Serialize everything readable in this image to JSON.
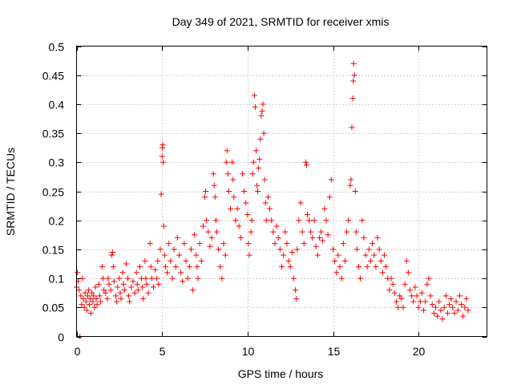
{
  "chart_data": {
    "type": "scatter",
    "title": "Day 349 of 2021, SRMTID for receiver xmis",
    "xlabel": "GPS time / hours",
    "ylabel": "SRMTID / TECUs",
    "xlim": [
      0,
      24
    ],
    "ylim": [
      0,
      0.5
    ],
    "x_ticks": [
      0,
      5,
      10,
      15,
      20
    ],
    "x_tick_labels": [
      "0",
      "5",
      "10",
      "15",
      "20"
    ],
    "y_ticks": [
      0,
      0.05,
      0.1,
      0.15,
      0.2,
      0.25,
      0.3,
      0.35,
      0.4,
      0.45,
      0.5
    ],
    "y_tick_labels": [
      "0",
      "0.05",
      "0.1",
      "0.15",
      "0.2",
      "0.25",
      "0.3",
      "0.35",
      "0.4",
      "0.45",
      "0.5"
    ],
    "grid": true,
    "marker": "+",
    "marker_color": "#ff0000",
    "series": [
      {
        "name": "SRMTID",
        "points": [
          [
            0.0,
            0.085
          ],
          [
            0.05,
            0.11
          ],
          [
            0.1,
            0.095
          ],
          [
            0.15,
            0.08
          ],
          [
            0.2,
            0.0
          ],
          [
            0.25,
            0.07
          ],
          [
            0.3,
            0.055
          ],
          [
            0.35,
            0.1
          ],
          [
            0.4,
            0.065
          ],
          [
            0.45,
            0.05
          ],
          [
            0.5,
            0.075
          ],
          [
            0.55,
            0.06
          ],
          [
            0.6,
            0.045
          ],
          [
            0.65,
            0.07
          ],
          [
            0.7,
            0.08
          ],
          [
            0.75,
            0.055
          ],
          [
            0.8,
            0.065
          ],
          [
            0.85,
            0.04
          ],
          [
            0.9,
            0.075
          ],
          [
            0.95,
            0.06
          ],
          [
            1.0,
            0.07
          ],
          [
            1.05,
            0.05
          ],
          [
            1.1,
            0.085
          ],
          [
            1.15,
            0.065
          ],
          [
            1.2,
            0.055
          ],
          [
            1.3,
            0.09
          ],
          [
            1.35,
            0.07
          ],
          [
            1.4,
            0.06
          ],
          [
            1.5,
            0.12
          ],
          [
            1.55,
            0.1
          ],
          [
            1.6,
            0.08
          ],
          [
            1.7,
            0.075
          ],
          [
            1.8,
            0.065
          ],
          [
            1.85,
            0.1
          ],
          [
            1.9,
            0.09
          ],
          [
            2.0,
            0.08
          ],
          [
            2.05,
            0.14
          ],
          [
            2.1,
            0.145
          ],
          [
            2.15,
            0.12
          ],
          [
            2.2,
            0.095
          ],
          [
            2.3,
            0.07
          ],
          [
            2.35,
            0.06
          ],
          [
            2.4,
            0.085
          ],
          [
            2.5,
            0.1
          ],
          [
            2.55,
            0.075
          ],
          [
            2.6,
            0.065
          ],
          [
            2.7,
            0.11
          ],
          [
            2.75,
            0.09
          ],
          [
            2.8,
            0.08
          ],
          [
            2.9,
            0.125
          ],
          [
            3.0,
            0.1
          ],
          [
            3.05,
            0.07
          ],
          [
            3.1,
            0.06
          ],
          [
            3.2,
            0.085
          ],
          [
            3.3,
            0.095
          ],
          [
            3.4,
            0.075
          ],
          [
            3.5,
            0.11
          ],
          [
            3.55,
            0.09
          ],
          [
            3.6,
            0.08
          ],
          [
            3.7,
            0.12
          ],
          [
            3.8,
            0.1
          ],
          [
            3.85,
            0.085
          ],
          [
            3.9,
            0.065
          ],
          [
            4.0,
            0.13
          ],
          [
            4.05,
            0.1
          ],
          [
            4.1,
            0.09
          ],
          [
            4.2,
            0.075
          ],
          [
            4.3,
            0.16
          ],
          [
            4.35,
            0.12
          ],
          [
            4.4,
            0.1
          ],
          [
            4.5,
            0.085
          ],
          [
            4.6,
            0.115
          ],
          [
            4.7,
            0.1
          ],
          [
            4.75,
            0.13
          ],
          [
            4.8,
            0.09
          ],
          [
            4.9,
            0.15
          ],
          [
            4.95,
            0.245
          ],
          [
            5.0,
            0.31
          ],
          [
            5.02,
            0.325
          ],
          [
            5.04,
            0.33
          ],
          [
            5.06,
            0.3
          ],
          [
            5.1,
            0.19
          ],
          [
            5.15,
            0.14
          ],
          [
            5.2,
            0.12
          ],
          [
            5.3,
            0.11
          ],
          [
            5.4,
            0.16
          ],
          [
            5.5,
            0.13
          ],
          [
            5.6,
            0.1
          ],
          [
            5.7,
            0.15
          ],
          [
            5.8,
            0.12
          ],
          [
            5.9,
            0.17
          ],
          [
            6.0,
            0.14
          ],
          [
            6.1,
            0.11
          ],
          [
            6.2,
            0.095
          ],
          [
            6.3,
            0.16
          ],
          [
            6.4,
            0.13
          ],
          [
            6.5,
            0.1
          ],
          [
            6.6,
            0.12
          ],
          [
            6.7,
            0.15
          ],
          [
            6.8,
            0.08
          ],
          [
            6.9,
            0.175
          ],
          [
            7.0,
            0.14
          ],
          [
            7.05,
            0.12
          ],
          [
            7.1,
            0.1
          ],
          [
            7.2,
            0.16
          ],
          [
            7.3,
            0.13
          ],
          [
            7.4,
            0.19
          ],
          [
            7.5,
            0.24
          ],
          [
            7.55,
            0.25
          ],
          [
            7.6,
            0.2
          ],
          [
            7.7,
            0.18
          ],
          [
            7.8,
            0.155
          ],
          [
            7.9,
            0.17
          ],
          [
            8.0,
            0.28
          ],
          [
            8.05,
            0.26
          ],
          [
            8.1,
            0.24
          ],
          [
            8.15,
            0.2
          ],
          [
            8.2,
            0.18
          ],
          [
            8.3,
            0.15
          ],
          [
            8.4,
            0.12
          ],
          [
            8.5,
            0.1
          ],
          [
            8.6,
            0.16
          ],
          [
            8.7,
            0.14
          ],
          [
            8.75,
            0.3
          ],
          [
            8.8,
            0.32
          ],
          [
            8.85,
            0.28
          ],
          [
            8.9,
            0.25
          ],
          [
            9.0,
            0.22
          ],
          [
            9.1,
            0.3
          ],
          [
            9.15,
            0.27
          ],
          [
            9.2,
            0.24
          ],
          [
            9.3,
            0.2
          ],
          [
            9.4,
            0.22
          ],
          [
            9.5,
            0.19
          ],
          [
            9.6,
            0.17
          ],
          [
            9.7,
            0.28
          ],
          [
            9.8,
            0.25
          ],
          [
            9.9,
            0.23
          ],
          [
            10.0,
            0.21
          ],
          [
            10.05,
            0.16
          ],
          [
            10.1,
            0.14
          ],
          [
            10.2,
            0.18
          ],
          [
            10.25,
            0.2
          ],
          [
            10.3,
            0.28
          ],
          [
            10.35,
            0.3
          ],
          [
            10.4,
            0.415
          ],
          [
            10.45,
            0.395
          ],
          [
            10.5,
            0.32
          ],
          [
            10.55,
            0.26
          ],
          [
            10.6,
            0.25
          ],
          [
            10.65,
            0.29
          ],
          [
            10.7,
            0.305
          ],
          [
            10.75,
            0.34
          ],
          [
            10.8,
            0.38
          ],
          [
            10.85,
            0.388
          ],
          [
            10.9,
            0.4
          ],
          [
            10.95,
            0.35
          ],
          [
            11.0,
            0.27
          ],
          [
            11.05,
            0.23
          ],
          [
            11.1,
            0.2
          ],
          [
            11.2,
            0.24
          ],
          [
            11.3,
            0.22
          ],
          [
            11.4,
            0.2
          ],
          [
            11.5,
            0.18
          ],
          [
            11.6,
            0.16
          ],
          [
            11.7,
            0.19
          ],
          [
            11.8,
            0.17
          ],
          [
            11.9,
            0.15
          ],
          [
            12.0,
            0.12
          ],
          [
            12.1,
            0.14
          ],
          [
            12.2,
            0.18
          ],
          [
            12.3,
            0.16
          ],
          [
            12.4,
            0.13
          ],
          [
            12.5,
            0.12
          ],
          [
            12.6,
            0.145
          ],
          [
            12.7,
            0.1
          ],
          [
            12.8,
            0.08
          ],
          [
            12.85,
            0.065
          ],
          [
            12.9,
            0.15
          ],
          [
            13.0,
            0.2
          ],
          [
            13.1,
            0.23
          ],
          [
            13.2,
            0.18
          ],
          [
            13.3,
            0.16
          ],
          [
            13.4,
            0.3
          ],
          [
            13.45,
            0.295
          ],
          [
            13.5,
            0.21
          ],
          [
            13.6,
            0.2
          ],
          [
            13.7,
            0.18
          ],
          [
            13.8,
            0.17
          ],
          [
            13.9,
            0.2
          ],
          [
            14.0,
            0.155
          ],
          [
            14.1,
            0.14
          ],
          [
            14.2,
            0.17
          ],
          [
            14.3,
            0.18
          ],
          [
            14.4,
            0.165
          ],
          [
            14.5,
            0.22
          ],
          [
            14.6,
            0.2
          ],
          [
            14.7,
            0.175
          ],
          [
            14.8,
            0.24
          ],
          [
            14.9,
            0.27
          ],
          [
            15.0,
            0.15
          ],
          [
            15.1,
            0.13
          ],
          [
            15.2,
            0.11
          ],
          [
            15.3,
            0.14
          ],
          [
            15.4,
            0.12
          ],
          [
            15.5,
            0.1
          ],
          [
            15.6,
            0.16
          ],
          [
            15.7,
            0.13
          ],
          [
            15.8,
            0.18
          ],
          [
            15.9,
            0.2
          ],
          [
            16.0,
            0.26
          ],
          [
            16.05,
            0.27
          ],
          [
            16.1,
            0.36
          ],
          [
            16.15,
            0.41
          ],
          [
            16.18,
            0.44
          ],
          [
            16.2,
            0.47
          ],
          [
            16.25,
            0.45
          ],
          [
            16.3,
            0.25
          ],
          [
            16.35,
            0.18
          ],
          [
            16.4,
            0.15
          ],
          [
            16.5,
            0.12
          ],
          [
            16.6,
            0.1
          ],
          [
            16.7,
            0.2
          ],
          [
            16.8,
            0.17
          ],
          [
            16.9,
            0.14
          ],
          [
            17.0,
            0.12
          ],
          [
            17.1,
            0.15
          ],
          [
            17.2,
            0.13
          ],
          [
            17.3,
            0.16
          ],
          [
            17.4,
            0.14
          ],
          [
            17.5,
            0.12
          ],
          [
            17.6,
            0.17
          ],
          [
            17.7,
            0.15
          ],
          [
            17.8,
            0.13
          ],
          [
            17.9,
            0.11
          ],
          [
            18.0,
            0.14
          ],
          [
            18.1,
            0.12
          ],
          [
            18.2,
            0.1
          ],
          [
            18.3,
            0.08
          ],
          [
            18.4,
            0.1
          ],
          [
            18.5,
            0.09
          ],
          [
            18.6,
            0.075
          ],
          [
            18.7,
            0.06
          ],
          [
            18.8,
            0.05
          ],
          [
            18.9,
            0.07
          ],
          [
            19.0,
            0.065
          ],
          [
            19.1,
            0.05
          ],
          [
            19.2,
            0.09
          ],
          [
            19.3,
            0.13
          ],
          [
            19.4,
            0.11
          ],
          [
            19.5,
            0.08
          ],
          [
            19.6,
            0.07
          ],
          [
            19.7,
            0.06
          ],
          [
            19.8,
            0.085
          ],
          [
            19.9,
            0.07
          ],
          [
            20.0,
            0.05
          ],
          [
            20.1,
            0.06
          ],
          [
            20.2,
            0.075
          ],
          [
            20.3,
            0.045
          ],
          [
            20.4,
            0.06
          ],
          [
            20.5,
            0.09
          ],
          [
            20.6,
            0.1
          ],
          [
            20.7,
            0.07
          ],
          [
            20.8,
            0.055
          ],
          [
            20.9,
            0.04
          ],
          [
            21.0,
            0.05
          ],
          [
            21.1,
            0.035
          ],
          [
            21.2,
            0.06
          ],
          [
            21.3,
            0.045
          ],
          [
            21.4,
            0.03
          ],
          [
            21.5,
            0.05
          ],
          [
            21.6,
            0.07
          ],
          [
            21.7,
            0.04
          ],
          [
            21.8,
            0.055
          ],
          [
            21.9,
            0.065
          ],
          [
            22.0,
            0.05
          ],
          [
            22.1,
            0.04
          ],
          [
            22.2,
            0.06
          ],
          [
            22.3,
            0.045
          ],
          [
            22.4,
            0.07
          ],
          [
            22.5,
            0.055
          ],
          [
            22.6,
            0.035
          ],
          [
            22.7,
            0.05
          ],
          [
            22.8,
            0.065
          ],
          [
            22.9,
            0.045
          ]
        ]
      }
    ]
  }
}
